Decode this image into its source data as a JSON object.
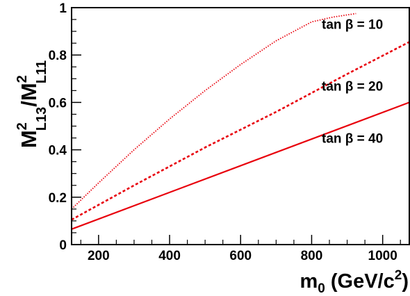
{
  "chart_data": {
    "type": "line",
    "xlabel": {
      "main": "m",
      "sub": "0",
      "unit_open": " (GeV/c",
      "unit_sup": "2",
      "unit_close": ")"
    },
    "ylabel": {
      "a": "M",
      "a_sup": "2",
      "a_sub": "L13",
      "slash": "/",
      "b": "M",
      "b_sup": "2",
      "b_sub": "L11"
    },
    "xlim": [
      124,
      1075
    ],
    "ylim": [
      0,
      1
    ],
    "xticks": [
      200,
      400,
      600,
      800,
      1000
    ],
    "xtick_labels": [
      "200",
      "400",
      "600",
      "800",
      "1000"
    ],
    "yticks": [
      0,
      0.2,
      0.4,
      0.6,
      0.8,
      1
    ],
    "ytick_labels": [
      "0",
      "0.2",
      "0.4",
      "0.6",
      "0.8",
      "1"
    ],
    "grid": false,
    "legend": "none",
    "series": [
      {
        "annotation": "tan β = 10",
        "style": "dotted",
        "color": "#e8000b",
        "x": [
          124,
          200,
          300,
          400,
          500,
          600,
          700,
          800,
          860,
          925
        ],
        "y": [
          0.15,
          0.26,
          0.4,
          0.53,
          0.65,
          0.76,
          0.86,
          0.94,
          0.96,
          0.975
        ]
      },
      {
        "annotation": "tan β = 20",
        "style": "dashed",
        "color": "#e8000b",
        "x": [
          124,
          300,
          500,
          700,
          900,
          1075
        ],
        "y": [
          0.105,
          0.25,
          0.41,
          0.56,
          0.72,
          0.855
        ]
      },
      {
        "annotation": "tan β = 40",
        "style": "solid",
        "color": "#e8000b",
        "x": [
          124,
          1075
        ],
        "y": [
          0.065,
          0.6
        ]
      }
    ]
  }
}
